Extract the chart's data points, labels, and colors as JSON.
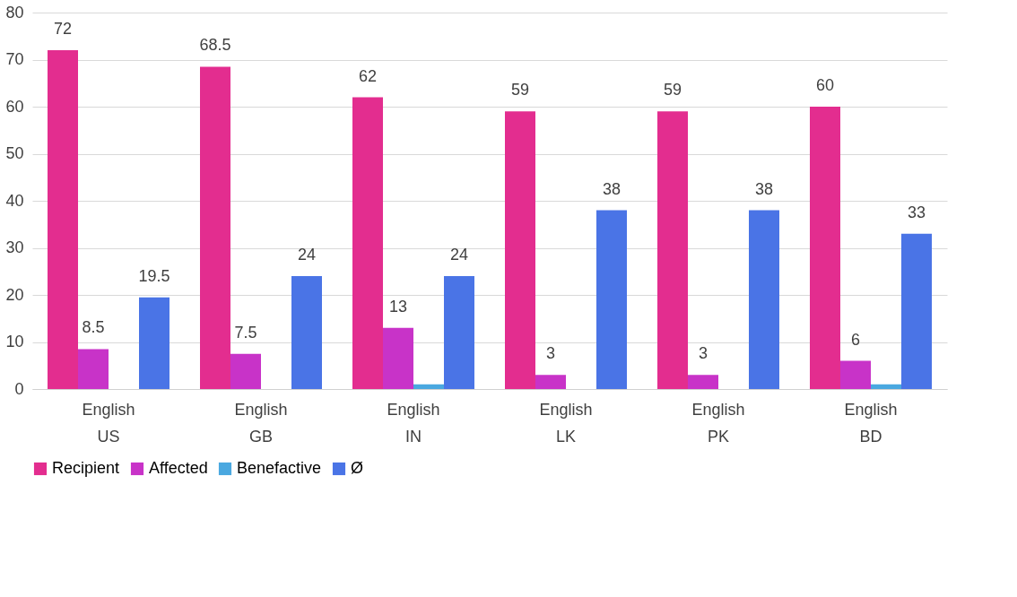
{
  "chart_data": {
    "type": "bar",
    "categories": [
      "English\nUS",
      "English\nGB",
      "English\nIN",
      "English\nLK",
      "English\nPK",
      "English\nBD"
    ],
    "series": [
      {
        "name": "Recipient",
        "color": "#e32d8f",
        "values": [
          72,
          68.5,
          62,
          59,
          59,
          60
        ],
        "value_labels": [
          "72",
          "68.5",
          "62",
          "59",
          "59",
          "60"
        ]
      },
      {
        "name": "Affected",
        "color": "#c833c8",
        "values": [
          8.5,
          7.5,
          13,
          3,
          3,
          6
        ],
        "value_labels": [
          "8.5",
          "7.5",
          "13",
          "3",
          "3",
          "6"
        ]
      },
      {
        "name": "Benefactive",
        "color": "#4aa8e0",
        "values": [
          null,
          null,
          1,
          null,
          null,
          1
        ],
        "value_labels": [
          null,
          null,
          null,
          null,
          null,
          null
        ]
      },
      {
        "name": "Ø",
        "color": "#4a74e6",
        "values": [
          19.5,
          24,
          24,
          38,
          38,
          33
        ],
        "value_labels": [
          "19.5",
          "24",
          "24",
          "38",
          "38",
          "33"
        ]
      }
    ],
    "ylim": [
      0,
      80
    ],
    "yticks": [
      0,
      10,
      20,
      30,
      40,
      50,
      60,
      70,
      80
    ],
    "grid": "y",
    "legend": "bottom"
  }
}
